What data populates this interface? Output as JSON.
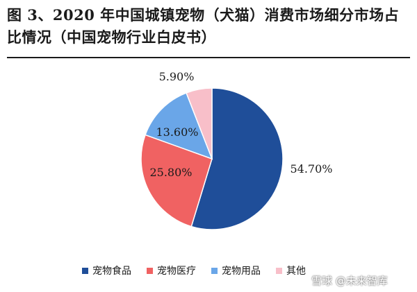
{
  "title": "图 3、2020 年中国城镇宠物（犬猫）消费市场细分市场占比情况（中国宠物行业白皮书）",
  "watermark": "雪球 @未来智库",
  "chart_data": {
    "type": "pie",
    "title": "图 3、2020 年中国城镇宠物（犬猫）消费市场细分市场占比情况（中国宠物行业白皮书）",
    "series": [
      {
        "name": "宠物食品",
        "value": 54.7,
        "label": "54.70%",
        "color": "#1f4e99"
      },
      {
        "name": "宠物医疗",
        "value": 25.8,
        "label": "25.80%",
        "color": "#f06262"
      },
      {
        "name": "宠物用品",
        "value": 13.6,
        "label": "13.60%",
        "color": "#6aa6e8"
      },
      {
        "name": "其他",
        "value": 5.9,
        "label": "5.90%",
        "color": "#f8bfc9"
      }
    ],
    "legend": "bottom"
  }
}
